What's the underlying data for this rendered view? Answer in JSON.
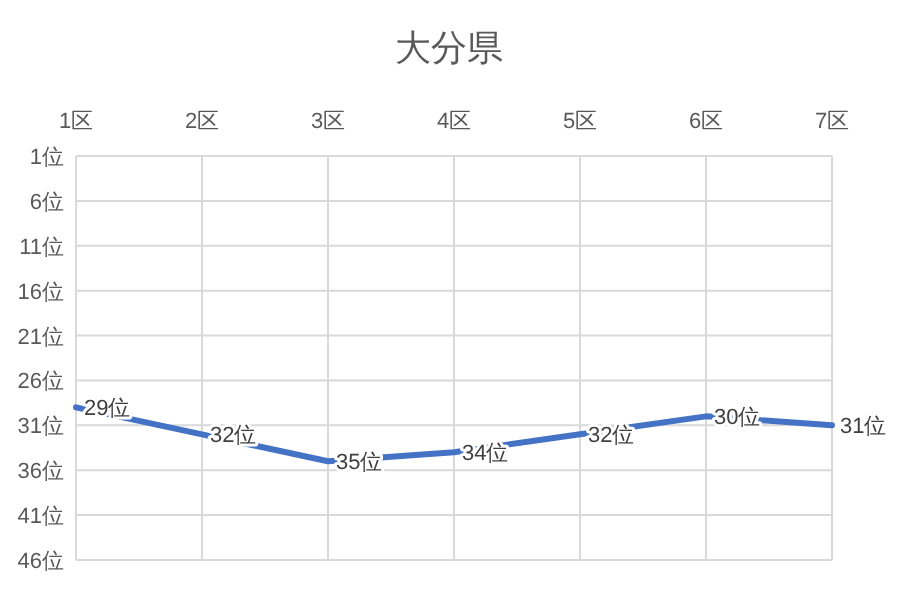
{
  "chart_data": {
    "type": "line",
    "title": "大分県",
    "categories": [
      "1区",
      "2区",
      "3区",
      "4区",
      "5区",
      "6区",
      "7区"
    ],
    "series": [
      {
        "color": "#4472c4",
        "values": [
          29,
          32,
          35,
          34,
          32,
          30,
          31
        ],
        "value_labels": [
          "29位",
          "32位",
          "35位",
          "34位",
          "32位",
          "30位",
          "31位"
        ]
      }
    ],
    "ylim": [
      46,
      1
    ],
    "yticks": [
      {
        "value": 1,
        "label": "1位"
      },
      {
        "value": 6,
        "label": "6位"
      },
      {
        "value": 11,
        "label": "11位"
      },
      {
        "value": 16,
        "label": "16位"
      },
      {
        "value": 21,
        "label": "21位"
      },
      {
        "value": 26,
        "label": "26位"
      },
      {
        "value": 31,
        "label": "31位"
      },
      {
        "value": 36,
        "label": "36位"
      },
      {
        "value": 41,
        "label": "41位"
      },
      {
        "value": 46,
        "label": "46位"
      }
    ],
    "grid": true,
    "marker": "none",
    "line_style": "solid"
  }
}
